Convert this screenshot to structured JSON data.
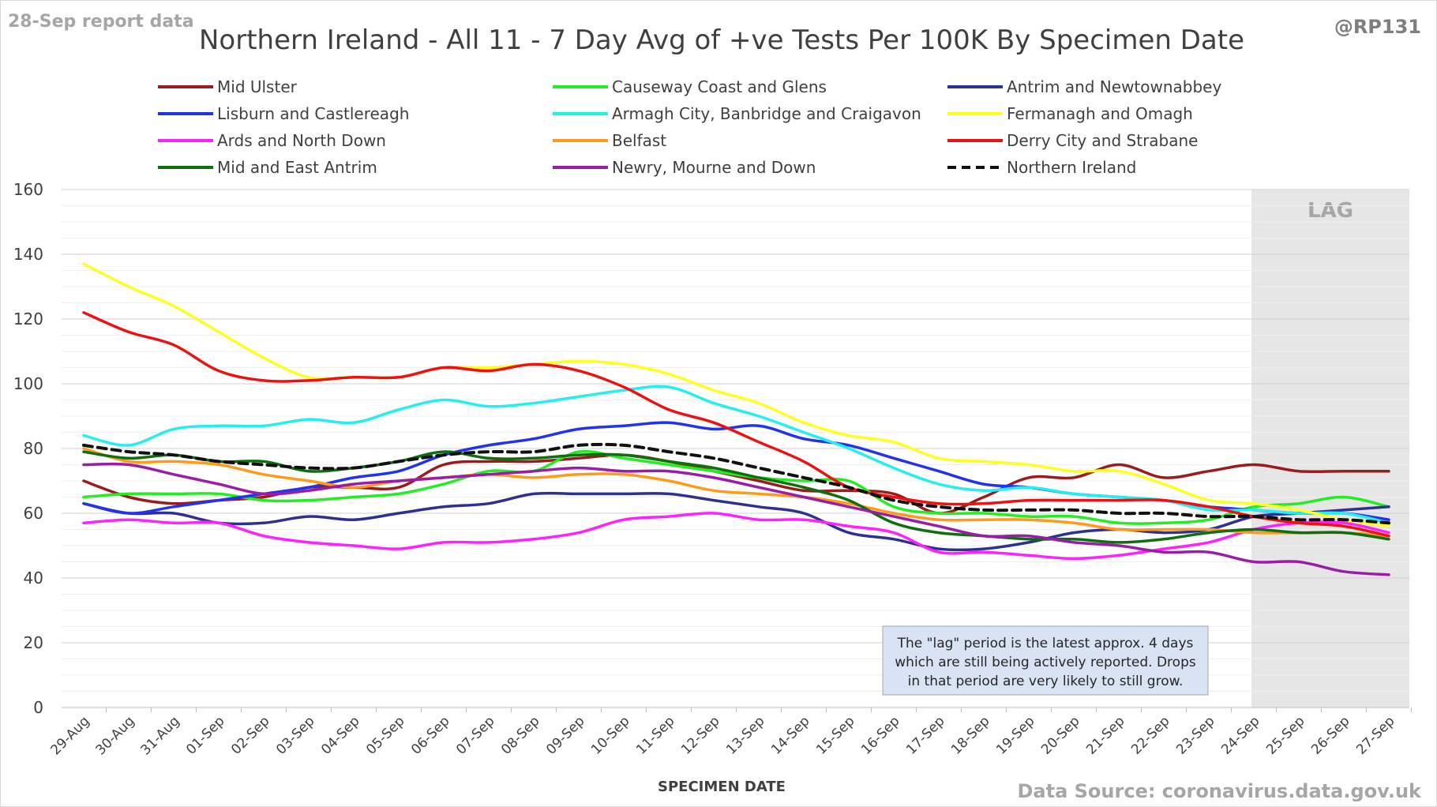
{
  "header": {
    "report_label": "28-Sep report data",
    "handle": "@RP131",
    "source": "Data Source: coronavirus.data.gov.uk"
  },
  "note": {
    "lines": [
      "The \"lag\" period is the latest approx. 4 days",
      "which are still being actively reported. Drops",
      "in that period are very likely to still grow."
    ]
  },
  "chart_data": {
    "type": "line",
    "title": "Northern Ireland - All 11 - 7 Day Avg of +ve Tests Per 100K By Specimen Date",
    "xlabel": "SPECIMEN DATE",
    "ylabel": "",
    "ylim": [
      0,
      160
    ],
    "yticks": [
      0,
      20,
      40,
      60,
      80,
      100,
      120,
      140,
      160
    ],
    "grid": true,
    "legend_position": "top",
    "lag_label": "LAG",
    "lag_start": "24-Sep",
    "categories": [
      "29-Aug",
      "30-Aug",
      "31-Aug",
      "01-Sep",
      "02-Sep",
      "03-Sep",
      "04-Sep",
      "05-Sep",
      "06-Sep",
      "07-Sep",
      "08-Sep",
      "09-Sep",
      "10-Sep",
      "11-Sep",
      "12-Sep",
      "13-Sep",
      "14-Sep",
      "15-Sep",
      "16-Sep",
      "17-Sep",
      "18-Sep",
      "19-Sep",
      "20-Sep",
      "21-Sep",
      "22-Sep",
      "23-Sep",
      "24-Sep",
      "25-Sep",
      "26-Sep",
      "27-Sep"
    ],
    "series": [
      {
        "name": "Mid Ulster",
        "color": "#9b1c1c",
        "dash": false,
        "values": [
          70,
          65,
          63,
          64,
          65,
          68,
          68,
          68,
          75,
          76,
          76,
          77,
          78,
          76,
          73,
          70,
          67,
          67,
          66,
          60,
          65,
          71,
          71,
          75,
          71,
          73,
          75,
          73,
          73,
          73
        ]
      },
      {
        "name": "Causeway Coast and Glens",
        "color": "#22ee22",
        "dash": false,
        "values": [
          65,
          66,
          66,
          66,
          64,
          64,
          65,
          66,
          69,
          73,
          73,
          79,
          77,
          75,
          73,
          71,
          70,
          70,
          62,
          60,
          60,
          59,
          59,
          57,
          57,
          58,
          62,
          63,
          65,
          62
        ]
      },
      {
        "name": "Antrim and Newtownabbey",
        "color": "#2e3192",
        "dash": false,
        "values": [
          63,
          60,
          60,
          57,
          57,
          59,
          58,
          60,
          62,
          63,
          66,
          66,
          66,
          66,
          64,
          62,
          60,
          54,
          52,
          49,
          49,
          51,
          54,
          55,
          54,
          55,
          59,
          60,
          61,
          62
        ]
      },
      {
        "name": "Lisburn and Castlereagh",
        "color": "#2233ee",
        "dash": false,
        "values": [
          63,
          60,
          62,
          64,
          66,
          68,
          71,
          73,
          78,
          81,
          83,
          86,
          87,
          88,
          86,
          87,
          83,
          81,
          77,
          73,
          69,
          68,
          66,
          65,
          64,
          62,
          61,
          60,
          60,
          58
        ]
      },
      {
        "name": "Armagh City, Banbridge and Craigavon",
        "color": "#22f0f0",
        "dash": false,
        "values": [
          84,
          81,
          86,
          87,
          87,
          89,
          88,
          92,
          95,
          93,
          94,
          96,
          98,
          99,
          94,
          90,
          85,
          80,
          74,
          69,
          67,
          68,
          66,
          65,
          64,
          61,
          61,
          60,
          60,
          57
        ]
      },
      {
        "name": "Fermanagh and Omagh",
        "color": "#ffff22",
        "dash": false,
        "values": [
          137,
          130,
          124,
          116,
          108,
          102,
          102,
          102,
          105,
          105,
          106,
          107,
          106,
          103,
          98,
          94,
          88,
          84,
          82,
          77,
          76,
          75,
          73,
          73,
          69,
          64,
          63,
          61,
          58,
          56
        ]
      },
      {
        "name": "Ards and North Down",
        "color": "#ff22ff",
        "dash": false,
        "values": [
          57,
          58,
          57,
          57,
          53,
          51,
          50,
          49,
          51,
          51,
          52,
          54,
          58,
          59,
          60,
          58,
          58,
          56,
          54,
          48,
          48,
          47,
          46,
          47,
          49,
          51,
          55,
          57,
          57,
          54
        ]
      },
      {
        "name": "Belfast",
        "color": "#ff9a1a",
        "dash": false,
        "values": [
          80,
          76,
          76,
          75,
          72,
          70,
          68,
          70,
          71,
          72,
          71,
          72,
          72,
          70,
          67,
          66,
          65,
          63,
          60,
          58,
          58,
          58,
          57,
          55,
          55,
          55,
          54,
          54,
          54,
          53
        ]
      },
      {
        "name": "Derry City and Strabane",
        "color": "#ee1111",
        "dash": false,
        "values": [
          122,
          116,
          112,
          104,
          101,
          101,
          102,
          102,
          105,
          104,
          106,
          104,
          99,
          92,
          88,
          82,
          76,
          68,
          65,
          63,
          63,
          64,
          64,
          64,
          64,
          62,
          59,
          57,
          56,
          53
        ]
      },
      {
        "name": "Mid and East Antrim",
        "color": "#0e6f0e",
        "dash": false,
        "values": [
          79,
          77,
          78,
          76,
          76,
          73,
          74,
          76,
          79,
          77,
          77,
          78,
          78,
          76,
          74,
          71,
          68,
          64,
          57,
          54,
          53,
          52,
          52,
          51,
          52,
          54,
          55,
          54,
          54,
          52
        ]
      },
      {
        "name": "Newry, Mourne and Down",
        "color": "#9b1ca8",
        "dash": false,
        "values": [
          75,
          75,
          72,
          69,
          66,
          67,
          69,
          70,
          71,
          72,
          73,
          74,
          73,
          73,
          71,
          68,
          65,
          62,
          59,
          56,
          53,
          53,
          51,
          50,
          48,
          48,
          45,
          45,
          42,
          41
        ]
      },
      {
        "name": "Northern Ireland",
        "color": "#111111",
        "dash": true,
        "values": [
          81,
          79,
          78,
          76,
          75,
          74,
          74,
          76,
          78,
          79,
          79,
          81,
          81,
          79,
          77,
          74,
          71,
          68,
          64,
          62,
          61,
          61,
          61,
          60,
          60,
          59,
          59,
          58,
          58,
          57
        ]
      }
    ]
  }
}
